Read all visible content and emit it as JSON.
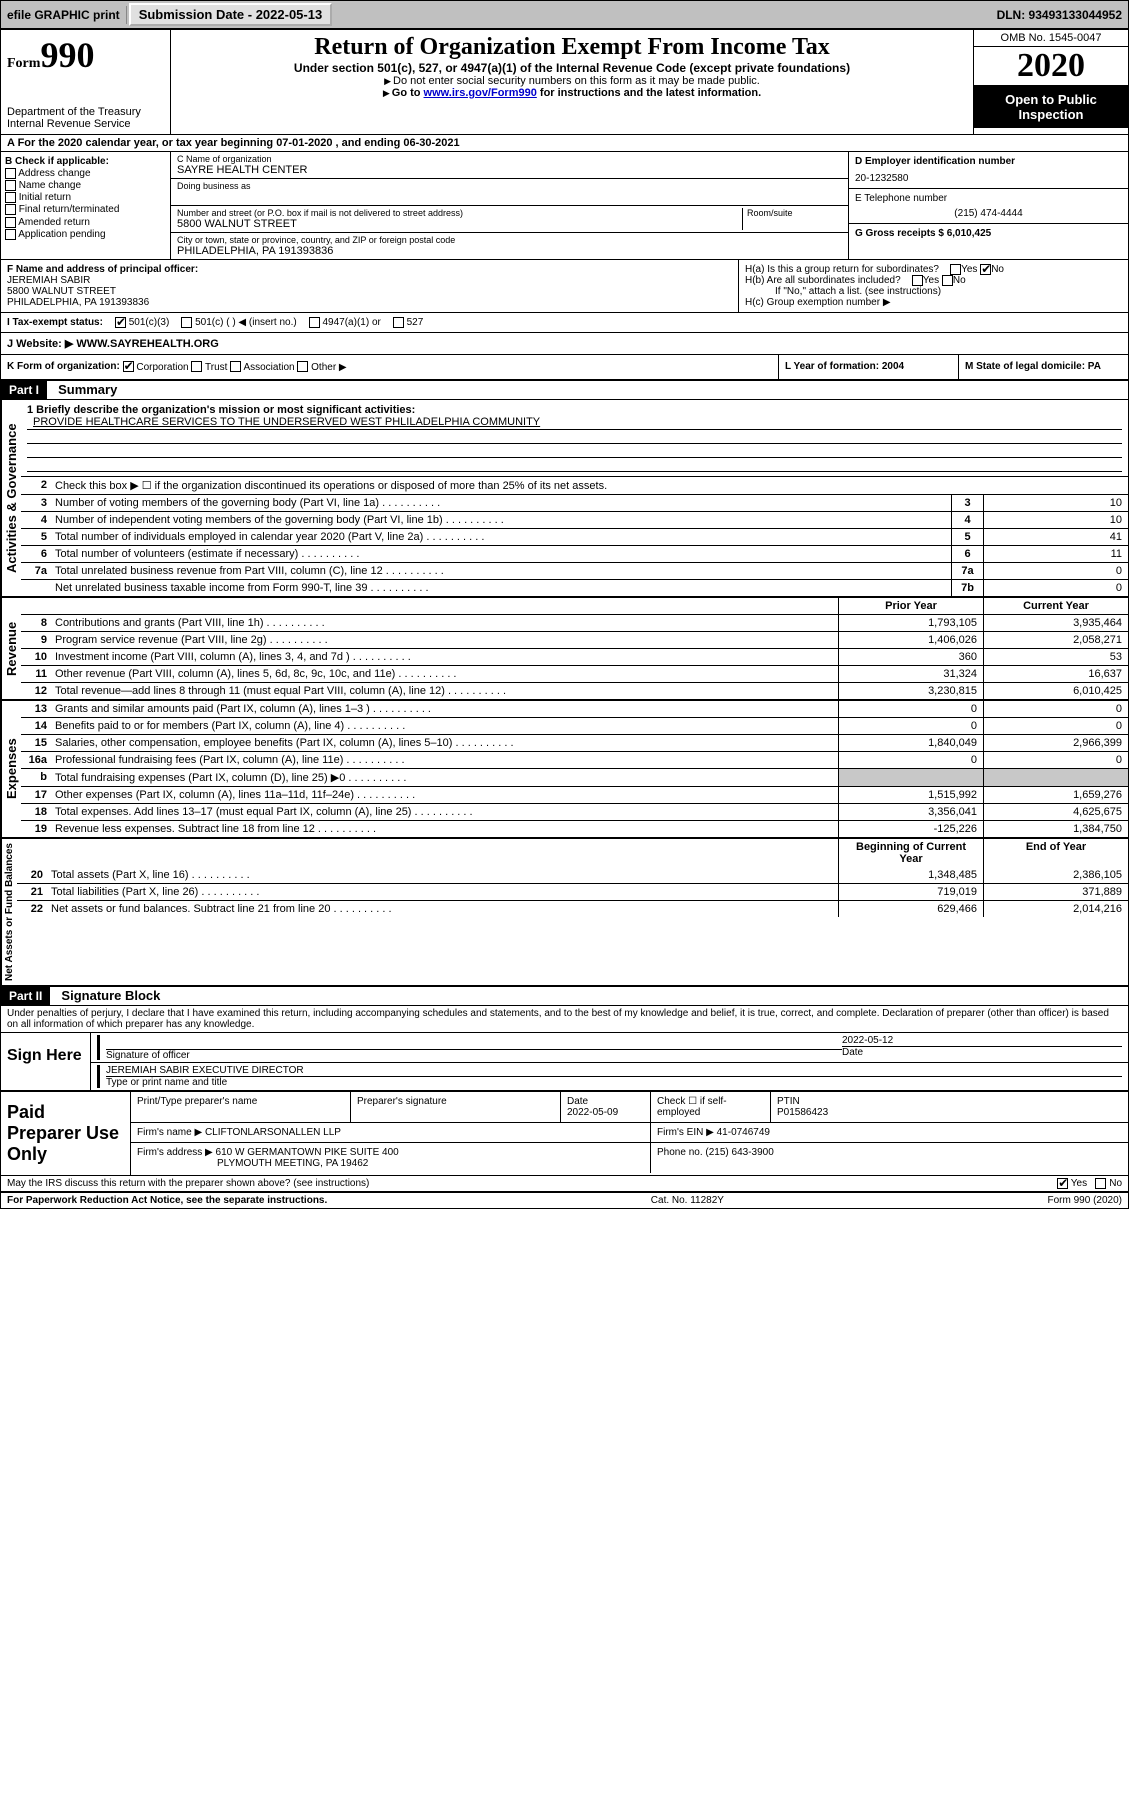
{
  "topbar": {
    "efile": "efile GRAPHIC print",
    "submission_label": "Submission Date - 2022-05-13",
    "dln_label": "DLN: 93493133044952"
  },
  "header": {
    "form_prefix": "Form",
    "form_num": "990",
    "dept": "Department of the Treasury",
    "irs": "Internal Revenue Service",
    "title": "Return of Organization Exempt From Income Tax",
    "sub": "Under section 501(c), 527, or 4947(a)(1) of the Internal Revenue Code (except private foundations)",
    "note1": "Do not enter social security numbers on this form as it may be made public.",
    "note2_pre": "Go to ",
    "note2_link": "www.irs.gov/Form990",
    "note2_post": " for instructions and the latest information.",
    "omb": "OMB No. 1545-0047",
    "year": "2020",
    "inspect": "Open to Public Inspection"
  },
  "rowA": "A For the 2020 calendar year, or tax year beginning 07-01-2020    , and ending 06-30-2021",
  "colB": {
    "label": "B Check if applicable:",
    "opts": [
      "Address change",
      "Name change",
      "Initial return",
      "Final return/terminated",
      "Amended return",
      "Application pending"
    ]
  },
  "colC": {
    "name_label": "C Name of organization",
    "name": "SAYRE HEALTH CENTER",
    "dba_label": "Doing business as",
    "addr_label": "Number and street (or P.O. box if mail is not delivered to street address)",
    "room_label": "Room/suite",
    "addr": "5800 WALNUT STREET",
    "city_label": "City or town, state or province, country, and ZIP or foreign postal code",
    "city": "PHILADELPHIA, PA  191393836"
  },
  "colD": {
    "ein_label": "D Employer identification number",
    "ein": "20-1232580",
    "tel_label": "E Telephone number",
    "tel": "(215) 474-4444",
    "gross_label": "G Gross receipts $ 6,010,425"
  },
  "F": {
    "label": "F Name and address of principal officer:",
    "name": "JEREMIAH SABIR",
    "addr1": "5800 WALNUT STREET",
    "addr2": "PHILADELPHIA, PA  191393836"
  },
  "H": {
    "a": "H(a)  Is this a group return for subordinates?",
    "b": "H(b)  Are all subordinates included?",
    "bnote": "If \"No,\" attach a list. (see instructions)",
    "c": "H(c)  Group exemption number ▶"
  },
  "I": {
    "label": "I  Tax-exempt status:",
    "opts": [
      "501(c)(3)",
      "501(c) (  ) ◀ (insert no.)",
      "4947(a)(1) or",
      "527"
    ]
  },
  "J": {
    "label": "J  Website: ▶",
    "val": "WWW.SAYREHEALTH.ORG"
  },
  "K": {
    "label": "K Form of organization:",
    "opts": [
      "Corporation",
      "Trust",
      "Association",
      "Other ▶"
    ],
    "L": "L Year of formation: 2004",
    "M": "M State of legal domicile: PA"
  },
  "partI": {
    "hdr": "Part I",
    "title": "Summary",
    "l1_label": "1  Briefly describe the organization's mission or most significant activities:",
    "l1_val": "PROVIDE HEALTHCARE SERVICES TO THE UNDERSERVED WEST PHLILADELPHIA COMMUNITY",
    "l2": "Check this box ▶ ☐  if the organization discontinued its operations or disposed of more than 25% of its net assets.",
    "lines_gov": [
      {
        "n": "3",
        "d": "Number of voting members of the governing body (Part VI, line 1a)",
        "b": "3",
        "v": "10"
      },
      {
        "n": "4",
        "d": "Number of independent voting members of the governing body (Part VI, line 1b)",
        "b": "4",
        "v": "10"
      },
      {
        "n": "5",
        "d": "Total number of individuals employed in calendar year 2020 (Part V, line 2a)",
        "b": "5",
        "v": "41"
      },
      {
        "n": "6",
        "d": "Total number of volunteers (estimate if necessary)",
        "b": "6",
        "v": "11"
      },
      {
        "n": "7a",
        "d": "Total unrelated business revenue from Part VIII, column (C), line 12",
        "b": "7a",
        "v": "0"
      },
      {
        "n": "",
        "d": "Net unrelated business taxable income from Form 990-T, line 39",
        "b": "7b",
        "v": "0"
      }
    ],
    "col_prior": "Prior Year",
    "col_current": "Current Year",
    "revenue": [
      {
        "n": "8",
        "d": "Contributions and grants (Part VIII, line 1h)",
        "p": "1,793,105",
        "c": "3,935,464"
      },
      {
        "n": "9",
        "d": "Program service revenue (Part VIII, line 2g)",
        "p": "1,406,026",
        "c": "2,058,271"
      },
      {
        "n": "10",
        "d": "Investment income (Part VIII, column (A), lines 3, 4, and 7d )",
        "p": "360",
        "c": "53"
      },
      {
        "n": "11",
        "d": "Other revenue (Part VIII, column (A), lines 5, 6d, 8c, 9c, 10c, and 11e)",
        "p": "31,324",
        "c": "16,637"
      },
      {
        "n": "12",
        "d": "Total revenue—add lines 8 through 11 (must equal Part VIII, column (A), line 12)",
        "p": "3,230,815",
        "c": "6,010,425"
      }
    ],
    "expenses": [
      {
        "n": "13",
        "d": "Grants and similar amounts paid (Part IX, column (A), lines 1–3 )",
        "p": "0",
        "c": "0"
      },
      {
        "n": "14",
        "d": "Benefits paid to or for members (Part IX, column (A), line 4)",
        "p": "0",
        "c": "0"
      },
      {
        "n": "15",
        "d": "Salaries, other compensation, employee benefits (Part IX, column (A), lines 5–10)",
        "p": "1,840,049",
        "c": "2,966,399"
      },
      {
        "n": "16a",
        "d": "Professional fundraising fees (Part IX, column (A), line 11e)",
        "p": "0",
        "c": "0"
      },
      {
        "n": "b",
        "d": "Total fundraising expenses (Part IX, column (D), line 25) ▶0",
        "p": "",
        "c": "",
        "grey": true
      },
      {
        "n": "17",
        "d": "Other expenses (Part IX, column (A), lines 11a–11d, 11f–24e)",
        "p": "1,515,992",
        "c": "1,659,276"
      },
      {
        "n": "18",
        "d": "Total expenses. Add lines 13–17 (must equal Part IX, column (A), line 25)",
        "p": "3,356,041",
        "c": "4,625,675"
      },
      {
        "n": "19",
        "d": "Revenue less expenses. Subtract line 18 from line 12",
        "p": "-125,226",
        "c": "1,384,750"
      }
    ],
    "col_begin": "Beginning of Current Year",
    "col_end": "End of Year",
    "netassets": [
      {
        "n": "20",
        "d": "Total assets (Part X, line 16)",
        "p": "1,348,485",
        "c": "2,386,105"
      },
      {
        "n": "21",
        "d": "Total liabilities (Part X, line 26)",
        "p": "719,019",
        "c": "371,889"
      },
      {
        "n": "22",
        "d": "Net assets or fund balances. Subtract line 21 from line 20",
        "p": "629,466",
        "c": "2,014,216"
      }
    ]
  },
  "vtabs": {
    "gov": "Activities & Governance",
    "rev": "Revenue",
    "exp": "Expenses",
    "net": "Net Assets or Fund Balances"
  },
  "partII": {
    "hdr": "Part II",
    "title": "Signature Block",
    "decl": "Under penalties of perjury, I declare that I have examined this return, including accompanying schedules and statements, and to the best of my knowledge and belief, it is true, correct, and complete. Declaration of preparer (other than officer) is based on all information of which preparer has any knowledge.",
    "sign_here": "Sign Here",
    "sig_officer": "Signature of officer",
    "sig_date": "2022-05-12",
    "sig_date_label": "Date",
    "officer": "JEREMIAH SABIR  EXECUTIVE DIRECTOR",
    "officer_label": "Type or print name and title",
    "paid": "Paid Preparer Use Only",
    "prep_name_label": "Print/Type preparer's name",
    "prep_sig_label": "Preparer's signature",
    "prep_date_label": "Date",
    "prep_date": "2022-05-09",
    "self_emp": "Check ☐ if self-employed",
    "ptin_label": "PTIN",
    "ptin": "P01586423",
    "firm_name_label": "Firm's name    ▶",
    "firm_name": "CLIFTONLARSONALLEN LLP",
    "firm_ein_label": "Firm's EIN ▶",
    "firm_ein": "41-0746749",
    "firm_addr_label": "Firm's address ▶",
    "firm_addr1": "610 W GERMANTOWN PIKE SUITE 400",
    "firm_addr2": "PLYMOUTH MEETING, PA  19462",
    "phone_label": "Phone no.",
    "phone": "(215) 643-3900",
    "discuss": "May the IRS discuss this return with the preparer shown above? (see instructions)"
  },
  "footer": {
    "left": "For Paperwork Reduction Act Notice, see the separate instructions.",
    "mid": "Cat. No. 11282Y",
    "right": "Form 990 (2020)"
  }
}
